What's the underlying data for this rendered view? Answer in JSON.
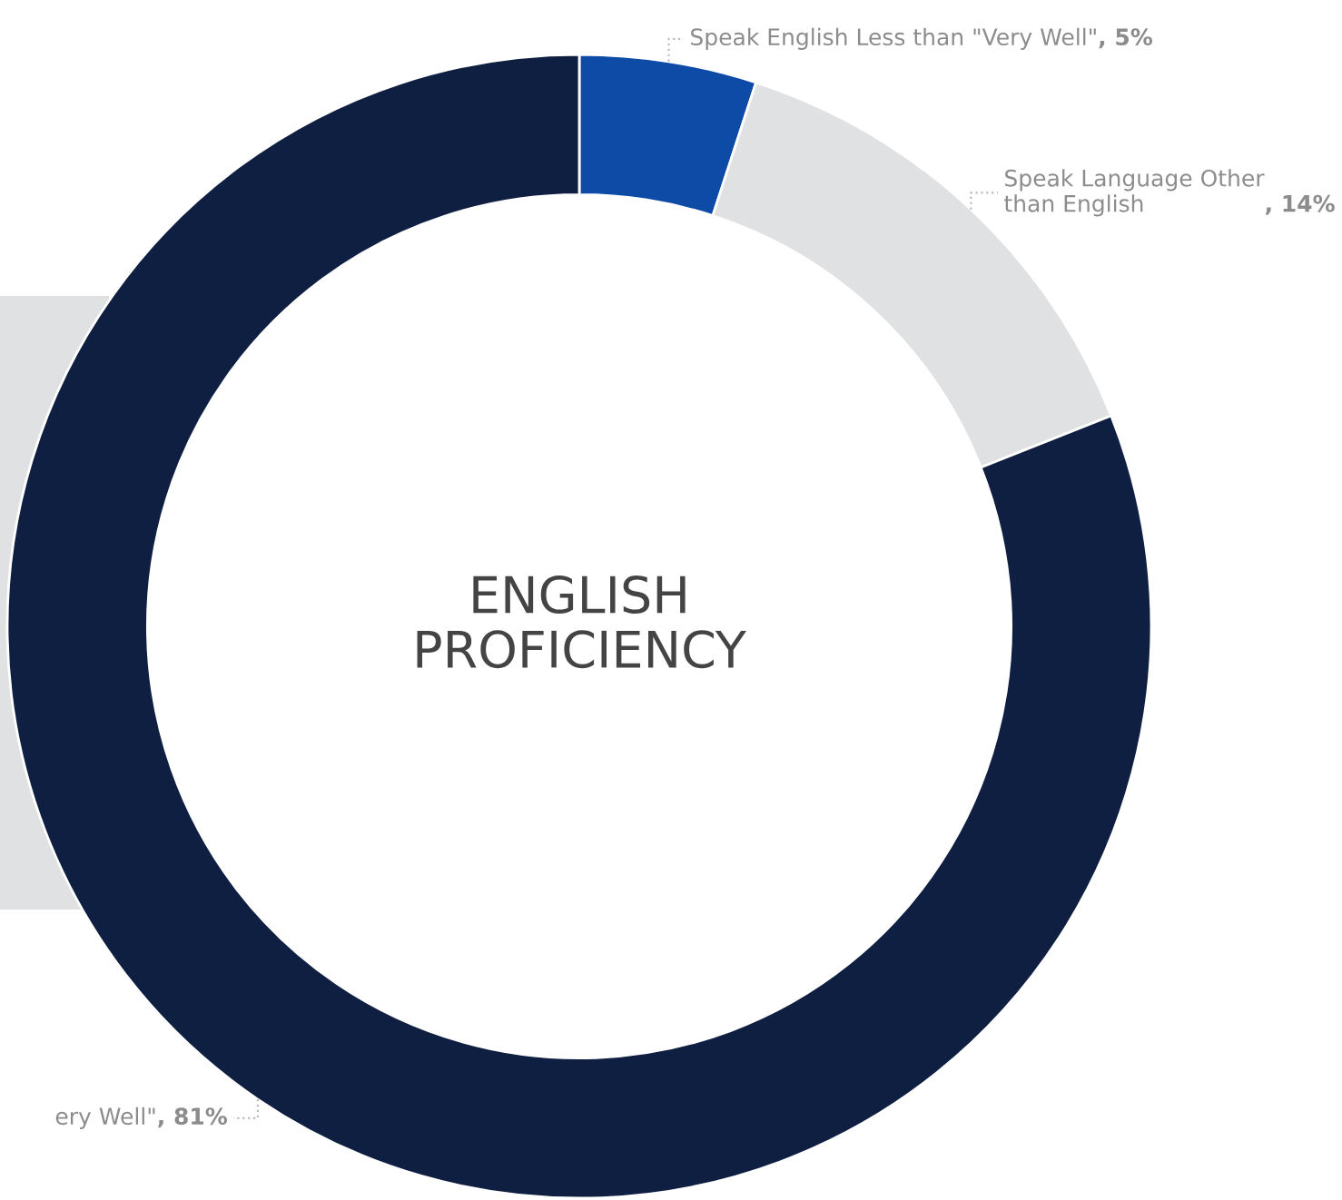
{
  "chart_data": {
    "type": "donut",
    "title": "ENGLISH\nPROFICIENCY",
    "categories": [
      "Speak English Less than \"Very Well\"",
      "Speak Language Other than English",
      "ery Well\""
    ],
    "values": [
      5,
      14,
      81
    ],
    "colors": [
      "#0d4ba6",
      "#e0e1e3",
      "#0f1f41"
    ],
    "value_labels": [
      ", 5%",
      ", 14%",
      ", 81%"
    ]
  }
}
